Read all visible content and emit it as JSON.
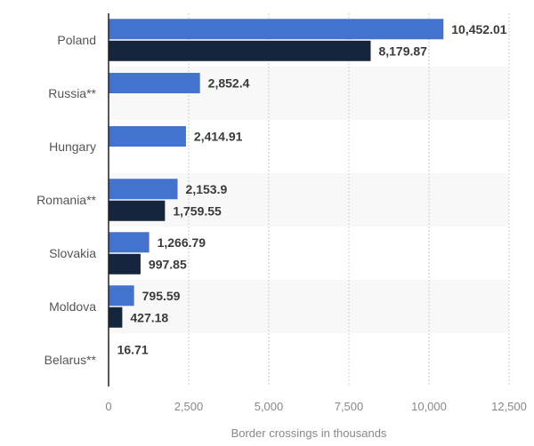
{
  "chart_data": {
    "type": "bar",
    "orientation": "horizontal",
    "title": "",
    "xlabel": "Border crossings in thousands",
    "ylabel": "",
    "xlim": [
      0,
      12500
    ],
    "xticks": [
      0,
      2500,
      5000,
      7500,
      10000,
      12500
    ],
    "xtick_labels": [
      "0",
      "2,500",
      "5,000",
      "7,500",
      "10,000",
      "12,500"
    ],
    "grid": true,
    "legend": "none",
    "categories": [
      "Poland",
      "Russia**",
      "Hungary",
      "Romania**",
      "Slovakia",
      "Moldova",
      "Belarus**"
    ],
    "series": [
      {
        "name": "Series 1",
        "color": "#4373cc",
        "values": [
          10452.01,
          2852.4,
          2414.91,
          2153.9,
          1266.79,
          795.59,
          16.71
        ],
        "labels": [
          "10,452.01",
          "2,852.4",
          "2,414.91",
          "2,153.9",
          "1,266.79",
          "795.59",
          "16.71"
        ]
      },
      {
        "name": "Series 2",
        "color": "#14253d",
        "values": [
          8179.87,
          null,
          null,
          1759.55,
          997.85,
          427.18,
          null
        ],
        "labels": [
          "8,179.87",
          null,
          null,
          "1,759.55",
          "997.85",
          "427.18",
          null
        ]
      }
    ]
  }
}
